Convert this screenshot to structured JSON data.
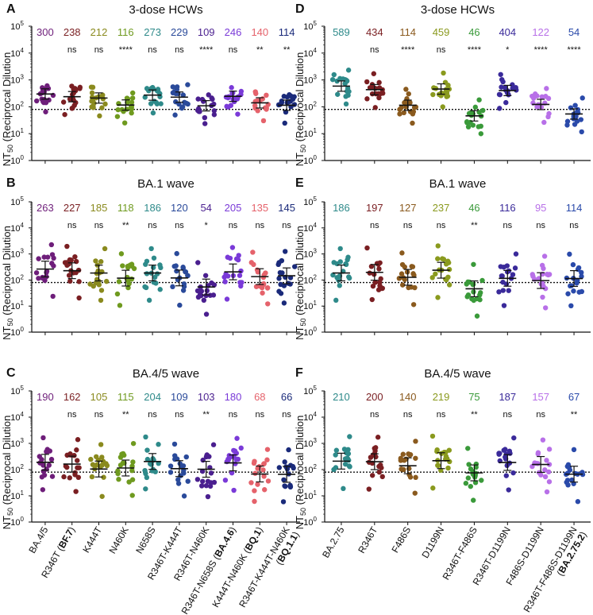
{
  "figure": {
    "colors_left": [
      "#6e1e7a",
      "#7a1f22",
      "#8a8a1e",
      "#6f9a1f",
      "#2e8a8a",
      "#2a4a9a",
      "#4a1f8f",
      "#7a3ad8",
      "#e5626b",
      "#1a2a7a"
    ],
    "colors_right": [
      "#2e8a8a",
      "#7a1f22",
      "#8a5a1e",
      "#8a9a1e",
      "#3a9a3a",
      "#3a2a9a",
      "#b870e8",
      "#2a4aaa"
    ],
    "y_axis_label_main": "NT",
    "y_axis_label_sub": "50",
    "y_axis_label_rest": " (Reciprocal Dilution",
    "x_labels_left": [
      {
        "parts": [
          {
            "t": "BA.4/5",
            "b": false
          }
        ]
      },
      {
        "parts": [
          {
            "t": "R346T (",
            "b": false
          },
          {
            "t": "BF.7",
            "b": true
          },
          {
            "t": ")",
            "b": false
          }
        ]
      },
      {
        "parts": [
          {
            "t": "K444T",
            "b": false
          }
        ]
      },
      {
        "parts": [
          {
            "t": "N460K",
            "b": false
          }
        ]
      },
      {
        "parts": [
          {
            "t": "N658S",
            "b": false
          }
        ]
      },
      {
        "parts": [
          {
            "t": "R346T-K444T",
            "b": false
          }
        ]
      },
      {
        "parts": [
          {
            "t": "R346T-N460K",
            "b": false
          }
        ]
      },
      {
        "parts": [
          {
            "t": "R346T-N658S (",
            "b": false
          },
          {
            "t": "BA.4.6",
            "b": true
          },
          {
            "t": ")",
            "b": false
          }
        ]
      },
      {
        "parts": [
          {
            "t": "K444T-N460K (",
            "b": false
          },
          {
            "t": "BQ.1",
            "b": true
          },
          {
            "t": ")",
            "b": false
          }
        ]
      },
      {
        "parts": [
          {
            "t": "R346T-K444T-N460K",
            "b": false
          }
        ],
        "line2": [
          {
            "t": "(",
            "b": false
          },
          {
            "t": "BQ.1.1",
            "b": true
          },
          {
            "t": ")",
            "b": false
          }
        ]
      }
    ],
    "x_labels_right": [
      {
        "parts": [
          {
            "t": "BA.2.75",
            "b": false
          }
        ]
      },
      {
        "parts": [
          {
            "t": "R346T",
            "b": false
          }
        ]
      },
      {
        "parts": [
          {
            "t": "F486S",
            "b": false
          }
        ]
      },
      {
        "parts": [
          {
            "t": "D1199N",
            "b": false
          }
        ]
      },
      {
        "parts": [
          {
            "t": "R346T-F486S",
            "b": false
          }
        ]
      },
      {
        "parts": [
          {
            "t": "R346T-D1199N",
            "b": false
          }
        ]
      },
      {
        "parts": [
          {
            "t": "F486S-D1199N",
            "b": false
          }
        ]
      },
      {
        "parts": [
          {
            "t": "R346T-F486S-D1199N",
            "b": false
          }
        ],
        "line2": [
          {
            "t": "(",
            "b": false
          },
          {
            "t": "BA.2.75.2",
            "b": true
          },
          {
            "t": ")",
            "b": false
          }
        ]
      }
    ]
  },
  "chart_data": [
    {
      "panel": "A",
      "type": "scatter",
      "title": "3-dose HCWs",
      "ylabel": "NT50 (Reciprocal Dilution",
      "ylim_log10": [
        0,
        5
      ],
      "y_ticks": [
        "10^0",
        "10^1",
        "10^2",
        "10^3",
        "10^4",
        "10^5"
      ],
      "limit_of_detection": 80,
      "categories": [
        "BA.4/5",
        "R346T (BF.7)",
        "K444T",
        "N460K",
        "N658S",
        "R346T-K444T",
        "R346T-N460K",
        "R346T-N658S (BA.4.6)",
        "K444T-N460K (BQ.1)",
        "R346T-K444T-N460K (BQ.1.1)"
      ],
      "geomean": [
        300,
        238,
        212,
        116,
        273,
        229,
        109,
        246,
        140,
        114
      ],
      "significance": [
        "",
        "ns",
        "ns",
        "****",
        "ns",
        "ns",
        "****",
        "ns",
        "**",
        "**"
      ]
    },
    {
      "panel": "B",
      "type": "scatter",
      "title": "BA.1 wave",
      "ylabel": "NT50 (Reciprocal Dilution",
      "ylim_log10": [
        0,
        5
      ],
      "y_ticks": [
        "10^0",
        "10^1",
        "10^2",
        "10^3",
        "10^4",
        "10^5"
      ],
      "limit_of_detection": 80,
      "categories": [
        "BA.4/5",
        "R346T (BF.7)",
        "K444T",
        "N460K",
        "N658S",
        "R346T-K444T",
        "R346T-N460K",
        "R346T-N658S (BA.4.6)",
        "K444T-N460K (BQ.1)",
        "R346T-K444T-N460K (BQ.1.1)"
      ],
      "geomean": [
        263,
        227,
        185,
        118,
        186,
        120,
        54,
        205,
        135,
        145
      ],
      "significance": [
        "",
        "ns",
        "ns",
        "**",
        "ns",
        "ns",
        "*",
        "ns",
        "ns",
        "ns"
      ]
    },
    {
      "panel": "C",
      "type": "scatter",
      "title": "BA.4/5 wave",
      "ylabel": "NT50 (Reciprocal Dilution",
      "ylim_log10": [
        0,
        5
      ],
      "y_ticks": [
        "10^0",
        "10^1",
        "10^2",
        "10^3",
        "10^4",
        "10^5"
      ],
      "limit_of_detection": 80,
      "categories": [
        "BA.4/5",
        "R346T (BF.7)",
        "K444T",
        "N460K",
        "N658S",
        "R346T-K444T",
        "R346T-N460K",
        "R346T-N658S (BA.4.6)",
        "K444T-N460K (BQ.1)",
        "R346T-K444T-N460K (BQ.1.1)"
      ],
      "geomean": [
        190,
        162,
        105,
        115,
        204,
        109,
        103,
        180,
        68,
        66
      ],
      "significance": [
        "",
        "ns",
        "ns",
        "**",
        "ns",
        "ns",
        "**",
        "ns",
        "ns",
        "ns"
      ]
    },
    {
      "panel": "D",
      "type": "scatter",
      "title": "3-dose HCWs",
      "ylabel": "NT50 (Reciprocal Dilution",
      "ylim_log10": [
        0,
        5
      ],
      "y_ticks": [
        "10^0",
        "10^1",
        "10^2",
        "10^3",
        "10^4",
        "10^5"
      ],
      "limit_of_detection": 80,
      "categories": [
        "BA.2.75",
        "R346T",
        "F486S",
        "D1199N",
        "R346T-F486S",
        "R346T-D1199N",
        "F486S-D1199N",
        "R346T-F486S-D1199N (BA.2.75.2)"
      ],
      "geomean": [
        589,
        434,
        114,
        459,
        46,
        404,
        122,
        54
      ],
      "significance": [
        "",
        "ns",
        "****",
        "ns",
        "****",
        "*",
        "****",
        "****"
      ]
    },
    {
      "panel": "E",
      "type": "scatter",
      "title": "BA.1 wave",
      "ylabel": "NT50 (Reciprocal Dilution",
      "ylim_log10": [
        0,
        5
      ],
      "y_ticks": [
        "10^0",
        "10^1",
        "10^2",
        "10^3",
        "10^4",
        "10^5"
      ],
      "limit_of_detection": 80,
      "categories": [
        "BA.2.75",
        "R346T",
        "F486S",
        "D1199N",
        "R346T-F486S",
        "R346T-D1199N",
        "F486S-D1199N",
        "R346T-F486S-D1199N (BA.2.75.2)"
      ],
      "geomean": [
        186,
        197,
        127,
        237,
        46,
        116,
        95,
        114
      ],
      "significance": [
        "",
        "ns",
        "ns",
        "ns",
        "**",
        "ns",
        "ns",
        "ns"
      ]
    },
    {
      "panel": "F",
      "type": "scatter",
      "title": "BA.4/5 wave",
      "ylabel": "NT50 (Reciprocal Dilution",
      "ylim_log10": [
        0,
        5
      ],
      "y_ticks": [
        "10^0",
        "10^1",
        "10^2",
        "10^3",
        "10^4",
        "10^5"
      ],
      "limit_of_detection": 80,
      "categories": [
        "BA.2.75",
        "R346T",
        "F486S",
        "D1199N",
        "R346T-F486S",
        "R346T-D1199N",
        "F486S-D1199N",
        "R346T-F486S-D1199N (BA.2.75.2)"
      ],
      "geomean": [
        210,
        200,
        140,
        219,
        75,
        187,
        157,
        67
      ],
      "significance": [
        "",
        "ns",
        "ns",
        "ns",
        "**",
        "ns",
        "ns",
        "**"
      ]
    }
  ]
}
